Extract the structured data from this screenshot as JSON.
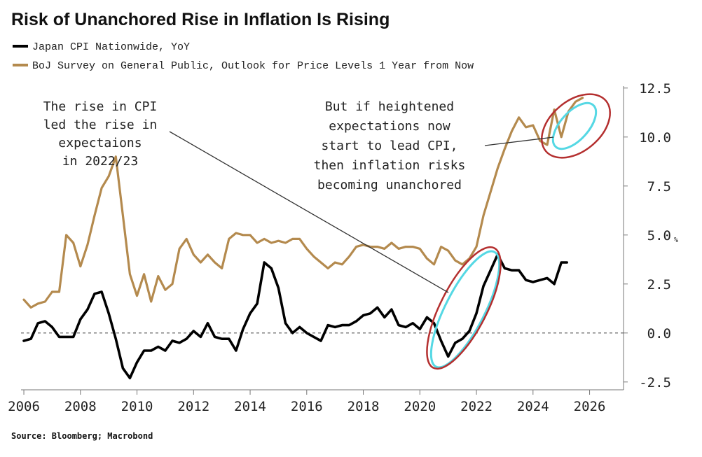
{
  "chart_data": {
    "type": "line",
    "title": "Risk of Unanchored Rise in Inflation Is Rising",
    "xlabel": "",
    "ylabel": "",
    "unit_label": "%",
    "source": "Source: Bloomberg; Macrobond",
    "xlim": [
      2005.9,
      2027.2
    ],
    "ylim": [
      -2.9,
      12.6
    ],
    "x_ticks": [
      2006,
      2008,
      2010,
      2012,
      2014,
      2016,
      2018,
      2020,
      2022,
      2024,
      2026
    ],
    "x_tick_labels": [
      "2006",
      "2008",
      "2010",
      "2012",
      "2014",
      "2016",
      "2018",
      "2020",
      "2022",
      "2024",
      "2026"
    ],
    "y_ticks": [
      -2.5,
      0,
      2.5,
      5,
      7.5,
      10,
      12.5
    ],
    "y_tick_labels": [
      "-2.5",
      "0.0",
      "2.5",
      "5.0",
      "7.5",
      "10.0",
      "12.5"
    ],
    "zero_line": true,
    "series": [
      {
        "name": "Japan CPI Nationwide, YoY",
        "color": "#000000",
        "points": [
          [
            2006.0,
            -0.4
          ],
          [
            2006.25,
            -0.3
          ],
          [
            2006.5,
            0.5
          ],
          [
            2006.75,
            0.6
          ],
          [
            2007.0,
            0.3
          ],
          [
            2007.25,
            -0.2
          ],
          [
            2007.5,
            -0.2
          ],
          [
            2007.75,
            -0.2
          ],
          [
            2008.0,
            0.7
          ],
          [
            2008.25,
            1.2
          ],
          [
            2008.5,
            2.0
          ],
          [
            2008.75,
            2.1
          ],
          [
            2009.0,
            1.0
          ],
          [
            2009.25,
            -0.3
          ],
          [
            2009.5,
            -1.8
          ],
          [
            2009.75,
            -2.3
          ],
          [
            2010.0,
            -1.5
          ],
          [
            2010.25,
            -0.9
          ],
          [
            2010.5,
            -0.9
          ],
          [
            2010.75,
            -0.7
          ],
          [
            2011.0,
            -0.9
          ],
          [
            2011.25,
            -0.4
          ],
          [
            2011.5,
            -0.5
          ],
          [
            2011.75,
            -0.3
          ],
          [
            2012.0,
            0.1
          ],
          [
            2012.25,
            -0.2
          ],
          [
            2012.5,
            0.5
          ],
          [
            2012.75,
            -0.2
          ],
          [
            2013.0,
            -0.3
          ],
          [
            2013.25,
            -0.3
          ],
          [
            2013.5,
            -0.9
          ],
          [
            2013.75,
            0.2
          ],
          [
            2014.0,
            1.0
          ],
          [
            2014.25,
            1.5
          ],
          [
            2014.5,
            3.6
          ],
          [
            2014.75,
            3.3
          ],
          [
            2015.0,
            2.3
          ],
          [
            2015.25,
            0.5
          ],
          [
            2015.5,
            0.0
          ],
          [
            2015.75,
            0.3
          ],
          [
            2016.0,
            0.0
          ],
          [
            2016.25,
            -0.2
          ],
          [
            2016.5,
            -0.4
          ],
          [
            2016.75,
            0.4
          ],
          [
            2017.0,
            0.3
          ],
          [
            2017.25,
            0.4
          ],
          [
            2017.5,
            0.4
          ],
          [
            2017.75,
            0.6
          ],
          [
            2018.0,
            0.9
          ],
          [
            2018.25,
            1.0
          ],
          [
            2018.5,
            1.3
          ],
          [
            2018.75,
            0.8
          ],
          [
            2019.0,
            1.2
          ],
          [
            2019.25,
            0.4
          ],
          [
            2019.5,
            0.3
          ],
          [
            2019.75,
            0.5
          ],
          [
            2020.0,
            0.2
          ],
          [
            2020.25,
            0.8
          ],
          [
            2020.5,
            0.5
          ],
          [
            2020.75,
            -0.4
          ],
          [
            2021.0,
            -1.2
          ],
          [
            2021.25,
            -0.5
          ],
          [
            2021.5,
            -0.3
          ],
          [
            2021.75,
            0.1
          ],
          [
            2022.0,
            1.0
          ],
          [
            2022.25,
            2.4
          ],
          [
            2022.5,
            3.2
          ],
          [
            2022.75,
            4.0
          ],
          [
            2023.0,
            3.3
          ],
          [
            2023.25,
            3.2
          ],
          [
            2023.5,
            3.2
          ],
          [
            2023.75,
            2.7
          ],
          [
            2024.0,
            2.6
          ],
          [
            2024.25,
            2.7
          ],
          [
            2024.5,
            2.8
          ],
          [
            2024.75,
            2.5
          ],
          [
            2025.0,
            3.6
          ],
          [
            2025.2,
            3.6
          ]
        ]
      },
      {
        "name": "BoJ Survey on General Public, Outlook for Price Levels 1 Year from Now",
        "color": "#B48A4E",
        "points": [
          [
            2006.0,
            1.7
          ],
          [
            2006.25,
            1.3
          ],
          [
            2006.5,
            1.5
          ],
          [
            2006.75,
            1.6
          ],
          [
            2007.0,
            2.1
          ],
          [
            2007.25,
            2.1
          ],
          [
            2007.5,
            5.0
          ],
          [
            2007.75,
            4.6
          ],
          [
            2008.0,
            3.4
          ],
          [
            2008.25,
            4.5
          ],
          [
            2008.5,
            6.0
          ],
          [
            2008.75,
            7.4
          ],
          [
            2009.0,
            8.0
          ],
          [
            2009.25,
            9.0
          ],
          [
            2009.5,
            6.0
          ],
          [
            2009.75,
            3.0
          ],
          [
            2010.0,
            1.9
          ],
          [
            2010.25,
            3.0
          ],
          [
            2010.5,
            1.6
          ],
          [
            2010.75,
            2.9
          ],
          [
            2011.0,
            2.2
          ],
          [
            2011.25,
            2.5
          ],
          [
            2011.5,
            4.3
          ],
          [
            2011.75,
            4.8
          ],
          [
            2012.0,
            4.0
          ],
          [
            2012.25,
            3.6
          ],
          [
            2012.5,
            4.0
          ],
          [
            2012.75,
            3.6
          ],
          [
            2013.0,
            3.3
          ],
          [
            2013.25,
            4.8
          ],
          [
            2013.5,
            5.1
          ],
          [
            2013.75,
            5.0
          ],
          [
            2014.0,
            5.0
          ],
          [
            2014.25,
            4.6
          ],
          [
            2014.5,
            4.8
          ],
          [
            2014.75,
            4.6
          ],
          [
            2015.0,
            4.7
          ],
          [
            2015.25,
            4.6
          ],
          [
            2015.5,
            4.8
          ],
          [
            2015.75,
            4.8
          ],
          [
            2016.0,
            4.3
          ],
          [
            2016.25,
            3.9
          ],
          [
            2016.5,
            3.6
          ],
          [
            2016.75,
            3.3
          ],
          [
            2017.0,
            3.6
          ],
          [
            2017.25,
            3.5
          ],
          [
            2017.5,
            3.9
          ],
          [
            2017.75,
            4.4
          ],
          [
            2018.0,
            4.5
          ],
          [
            2018.25,
            4.4
          ],
          [
            2018.5,
            4.4
          ],
          [
            2018.75,
            4.3
          ],
          [
            2019.0,
            4.6
          ],
          [
            2019.25,
            4.3
          ],
          [
            2019.5,
            4.4
          ],
          [
            2019.75,
            4.4
          ],
          [
            2020.0,
            4.3
          ],
          [
            2020.25,
            3.8
          ],
          [
            2020.5,
            3.5
          ],
          [
            2020.75,
            4.4
          ],
          [
            2021.0,
            4.2
          ],
          [
            2021.25,
            3.7
          ],
          [
            2021.5,
            3.5
          ],
          [
            2021.75,
            3.8
          ],
          [
            2022.0,
            4.4
          ],
          [
            2022.25,
            6.0
          ],
          [
            2022.5,
            7.2
          ],
          [
            2022.75,
            8.4
          ],
          [
            2023.0,
            9.4
          ],
          [
            2023.25,
            10.3
          ],
          [
            2023.5,
            11.0
          ],
          [
            2023.75,
            10.5
          ],
          [
            2024.0,
            10.6
          ],
          [
            2024.25,
            9.8
          ],
          [
            2024.5,
            9.6
          ],
          [
            2024.75,
            11.4
          ],
          [
            2025.0,
            10.0
          ],
          [
            2025.25,
            11.3
          ],
          [
            2025.5,
            11.8
          ],
          [
            2025.75,
            12.0
          ]
        ]
      }
    ],
    "annotations": [
      {
        "id": "left_note",
        "lines": [
          "The rise in CPI",
          "led the rise in",
          "expectaions",
          "in 2022/23"
        ]
      },
      {
        "id": "right_note",
        "lines": [
          "But if heightened",
          "expectations now",
          "start to lead CPI,",
          "then inflation risks",
          "becoming unanchored"
        ]
      }
    ]
  }
}
